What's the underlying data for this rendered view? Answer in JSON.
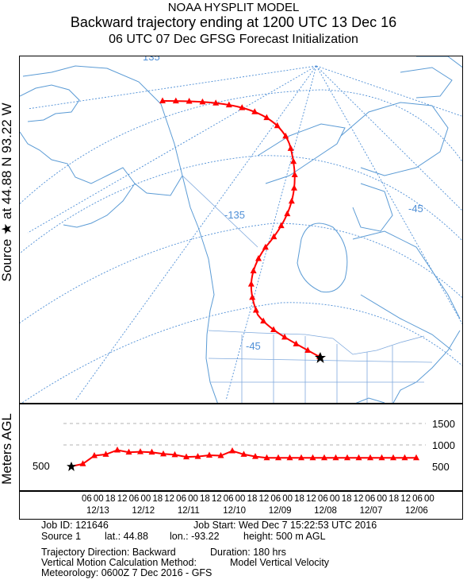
{
  "title": {
    "line1": "NOAA HYSPLIT MODEL",
    "line2": "Backward trajectory ending at 1200 UTC 13 Dec 16",
    "line3": "06 UTC 07 Dec    GFSG  Forecast Initialization"
  },
  "side_label": "Source ★ at   44.88 N   93.22 W",
  "map": {
    "longitude_labels": [
      "135",
      "-135",
      "-45",
      "-45"
    ],
    "source_marker": "star-icon",
    "trajectory_color": "#ff0000",
    "graticule_color": "#4f8fd6",
    "coastline_color": "#5b9bd5"
  },
  "chart_data": {
    "type": "line",
    "ylabel": "Meters AGL",
    "yticks": [
      500,
      1000,
      1500
    ],
    "ylim": [
      0,
      2000
    ],
    "x_hours_back": [
      0,
      6,
      12,
      18,
      24,
      30,
      36,
      42,
      48,
      54,
      60,
      66,
      72,
      78,
      84,
      90,
      96,
      102,
      108,
      114,
      120,
      126,
      132,
      138,
      144,
      150,
      156,
      162,
      168,
      174,
      180
    ],
    "series": [
      {
        "values": [
          500,
          560,
          750,
          780,
          880,
          830,
          840,
          830,
          790,
          770,
          720,
          730,
          760,
          750,
          860,
          780,
          730,
          700,
          700,
          700,
          700,
          700,
          700,
          700,
          700,
          700,
          700,
          700,
          700,
          700,
          700
        ]
      }
    ],
    "x_tick_labels": [
      "06",
      "00",
      "18",
      "12",
      "06",
      "00",
      "18",
      "12",
      "06",
      "00",
      "18",
      "12",
      "06",
      "00",
      "18",
      "12",
      "06",
      "00",
      "18",
      "12",
      "06",
      "00",
      "18",
      "12",
      "06",
      "00",
      "18",
      "12",
      "06",
      "00"
    ],
    "date_labels": [
      "12/13",
      "12/12",
      "12/11",
      "12/10",
      "12/09",
      "12/08",
      "12/07",
      "12/06"
    ],
    "color": "#ff0000"
  },
  "job": {
    "job_id": "Job ID: 121646",
    "job_start": "Job Start: Wed Dec  7 15:22:53 UTC 2016",
    "source": "Source 1",
    "lat": "lat.: 44.88",
    "lon": "lon.: -93.22",
    "height": "height: 500 m AGL",
    "direction": "Trajectory Direction: Backward",
    "duration": "Duration: 180 hrs",
    "vertical": "Vertical Motion Calculation Method:",
    "vertical_value": "Model Vertical Velocity",
    "meteorology": "Meteorology: 0600Z  7 Dec 2016 - GFS"
  }
}
